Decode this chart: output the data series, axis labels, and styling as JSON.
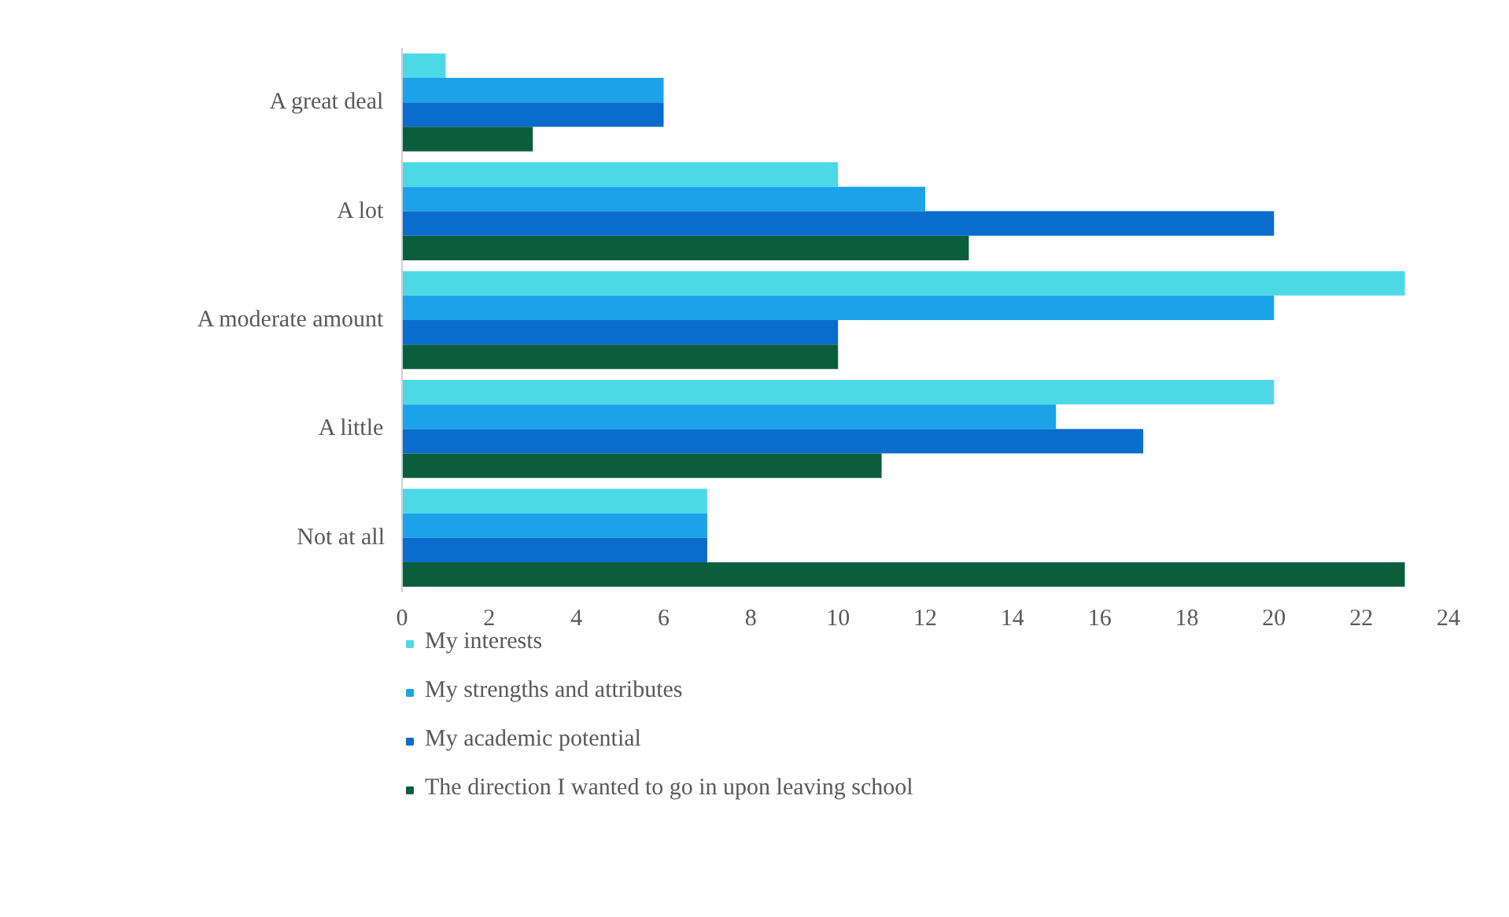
{
  "chart_data": {
    "type": "bar",
    "orientation": "horizontal",
    "categories": [
      "A great deal",
      "A lot",
      "A moderate amount",
      "A little",
      "Not at all"
    ],
    "series": [
      {
        "name": "My interests",
        "color": "#4dd8e6",
        "values": [
          1,
          10,
          23,
          20,
          7
        ]
      },
      {
        "name": "My strengths and attributes",
        "color": "#1aa3e8",
        "values": [
          6,
          12,
          20,
          15,
          7
        ]
      },
      {
        "name": "My academic potential",
        "color": "#0a6ccc",
        "values": [
          6,
          20,
          10,
          17,
          7
        ]
      },
      {
        "name": "The direction I wanted to go in upon leaving school",
        "color": "#0b5e3c",
        "values": [
          3,
          13,
          10,
          11,
          23
        ]
      }
    ],
    "xlim": [
      0,
      24
    ],
    "xticks": [
      0,
      2,
      4,
      6,
      8,
      10,
      12,
      14,
      16,
      18,
      20,
      22,
      24
    ],
    "grid": false,
    "legend": "bottom"
  }
}
